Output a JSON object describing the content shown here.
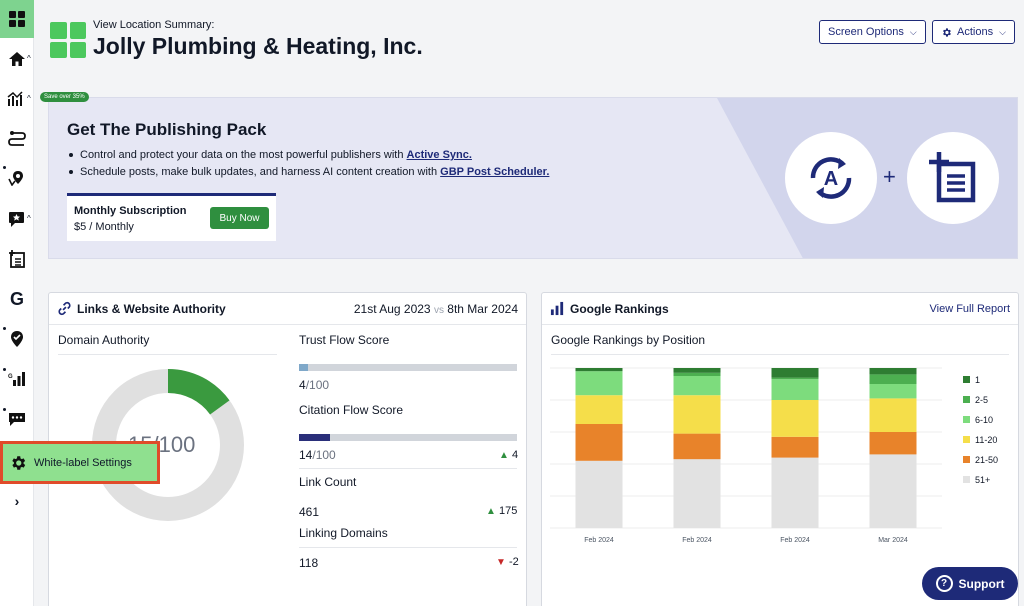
{
  "sidebar": {
    "items": [
      {
        "name": "dashboard-icon"
      },
      {
        "name": "home-icon"
      },
      {
        "name": "analytics-icon"
      },
      {
        "name": "routes-icon"
      },
      {
        "name": "locations-icon"
      },
      {
        "name": "reviews-icon"
      },
      {
        "name": "posts-icon"
      },
      {
        "name": "google-icon"
      },
      {
        "name": "gbp-icon"
      },
      {
        "name": "rankings-icon"
      },
      {
        "name": "messages-icon"
      },
      {
        "name": "settings-icon"
      },
      {
        "name": "expand-icon"
      }
    ],
    "flyout_label": "White-label Settings"
  },
  "header": {
    "subtitle": "View Location Summary:",
    "title": "Jolly Plumbing & Heating, Inc.",
    "screen_options": "Screen Options",
    "actions": "Actions"
  },
  "promo": {
    "badge": "Save over 35%",
    "title": "Get The Publishing Pack",
    "bullet1_text": "Control and protect your data on the most powerful publishers with ",
    "bullet1_link": "Active Sync.",
    "bullet2_text": "Schedule posts, make bulk updates, and harness AI content creation with ",
    "bullet2_link": "GBP Post Scheduler.",
    "plan_name": "Monthly Subscription",
    "plan_price": "$5 / Monthly",
    "buy_label": "Buy Now",
    "plus": "+"
  },
  "links_card": {
    "title": "Links & Website Authority",
    "date_from": "21st Aug 2023",
    "vs": "vs",
    "date_to": "8th Mar 2024",
    "domain_authority_label": "Domain Authority",
    "domain_authority_value": "15",
    "domain_authority_max": "/100",
    "trust_flow_label": "Trust Flow Score",
    "trust_flow_value": "4",
    "trust_flow_max": "/100",
    "trust_flow_fraction": 0.04,
    "citation_flow_label": "Citation Flow Score",
    "citation_flow_value": "14",
    "citation_flow_max": "/100",
    "citation_flow_fraction": 0.14,
    "citation_flow_delta": "4",
    "link_count_label": "Link Count",
    "link_count_value": "461",
    "link_count_delta": "175",
    "linking_domains_label": "Linking Domains",
    "linking_domains_value": "118",
    "linking_domains_delta": "-2",
    "colors": {
      "donut_fill": "#3a9a3f",
      "donut_track": "#e0e0e0",
      "trust": "#7fa8c9",
      "citation": "#2a2f7a"
    }
  },
  "rankings_card": {
    "title": "Google Rankings",
    "link": "View Full Report",
    "subtitle": "Google Rankings by Position"
  },
  "chart_data": {
    "type": "bar",
    "stacked": true,
    "categories": [
      "Feb 2024",
      "Feb 2024",
      "Feb 2024",
      "Mar 2024"
    ],
    "series": [
      {
        "name": "1",
        "color": "#2e7d32",
        "values": [
          2,
          3,
          6,
          4
        ]
      },
      {
        "name": "2-5",
        "color": "#4caf50",
        "values": [
          0,
          2,
          1,
          6
        ]
      },
      {
        "name": "6-10",
        "color": "#7ddc7d",
        "values": [
          15,
          12,
          13,
          9
        ]
      },
      {
        "name": "11-20",
        "color": "#f5de4a",
        "values": [
          18,
          24,
          23,
          21
        ]
      },
      {
        "name": "21-50",
        "color": "#e8832a",
        "values": [
          23,
          16,
          13,
          14
        ]
      },
      {
        "name": "51+",
        "color": "#e2e2e2",
        "values": [
          42,
          43,
          44,
          46
        ]
      }
    ],
    "ylim": [
      0,
      100
    ],
    "grid": true,
    "legend": "right"
  },
  "support": {
    "label": "Support"
  }
}
